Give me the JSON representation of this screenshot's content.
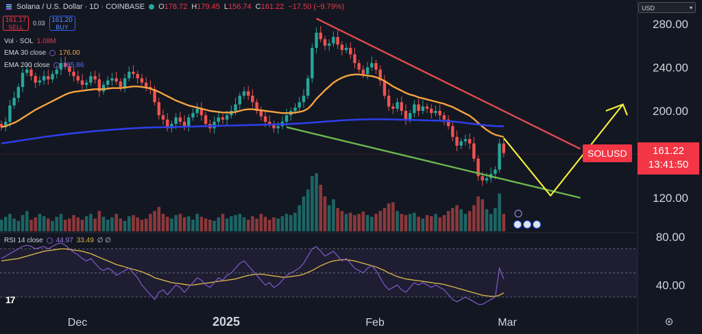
{
  "header": {
    "symbol": "Solana / U.S. Dollar · 1D · COINBASE",
    "open_label": "O",
    "open": "178.72",
    "high_label": "H",
    "high": "179.45",
    "low_label": "L",
    "low": "156.74",
    "close_label": "C",
    "close": "161.22",
    "change": "−17.50 (−9.79%)"
  },
  "trade": {
    "sell_price": "161.17",
    "sell_label": "SELL",
    "spread": "0.03",
    "buy_price": "161.20",
    "buy_label": "BUY"
  },
  "indicators": {
    "vol_label": "Vol · SOL",
    "vol_value": "1.08M",
    "ema30_label": "EMA 30 close",
    "ema30_value": "176.00",
    "ema200_label": "EMA 200 close",
    "ema200_value": "185.86",
    "rsi_label": "RSI 14 close",
    "rsi_value": "44.97",
    "rsi_ma_value": "33.49",
    "rsi_extra": "∅ ∅"
  },
  "currency_select": "USD",
  "price_label": {
    "symbol": "SOLUSD",
    "price": "161.22",
    "countdown": "13:41:50"
  },
  "colors": {
    "background": "#131722",
    "up": "#26a69a",
    "down": "#ef5350",
    "ema30": "#f7a440",
    "ema200": "#2d3ee6",
    "trend_upper": "#e04b50",
    "trend_lower": "#6cb84f",
    "projection": "#f2f03a",
    "rsi_line": "#7e57c2",
    "rsi_ma": "#d5b348"
  },
  "icons": {
    "logo": "tradingview-logo-icon",
    "settings": "settings-gear-icon",
    "flags": "us-flag-icon",
    "lightning": "lightning-icon"
  },
  "chart_data": [
    {
      "type": "candlestick",
      "title": "Solana / U.S. Dollar · 1D · COINBASE",
      "x_ticks": [
        "Dec",
        "2025",
        "Feb",
        "Mar"
      ],
      "y_ticks": [
        "280.00",
        "240.00",
        "200.00",
        "120.00"
      ],
      "ylim": [
        100,
        300
      ],
      "closes": [
        185,
        190,
        205,
        212,
        222,
        235,
        238,
        232,
        226,
        228,
        232,
        229,
        234,
        238,
        244,
        241,
        236,
        232,
        228,
        224,
        226,
        232,
        229,
        218,
        224,
        228,
        230,
        227,
        222,
        230,
        236,
        234,
        230,
        226,
        222,
        220,
        208,
        196,
        192,
        184,
        188,
        194,
        190,
        186,
        194,
        198,
        202,
        196,
        188,
        184,
        190,
        194,
        192,
        196,
        200,
        206,
        214,
        218,
        214,
        208,
        200,
        195,
        190,
        188,
        184,
        186,
        190,
        196,
        200,
        203,
        208,
        214,
        230,
        258,
        272,
        266,
        260,
        262,
        268,
        261,
        256,
        258,
        252,
        244,
        238,
        234,
        240,
        244,
        238,
        228,
        214,
        204,
        202,
        208,
        200,
        192,
        198,
        206,
        200,
        204,
        202,
        198,
        200,
        196,
        192,
        186,
        176,
        168,
        172,
        174,
        170,
        156,
        140,
        136,
        138,
        142,
        146,
        170,
        161.22
      ],
      "ema30": [
        185,
        186,
        187.5,
        189,
        191,
        193.5,
        196,
        198.5,
        201,
        203,
        205,
        207,
        209,
        211,
        213,
        215,
        216.5,
        217.5,
        218,
        218.5,
        219,
        219.5,
        220,
        220,
        220,
        220.5,
        221,
        221,
        221,
        221.5,
        222,
        222.5,
        222.5,
        222,
        221.5,
        220.5,
        219,
        217.5,
        215.5,
        213.5,
        211.5,
        209.5,
        208,
        206.5,
        205,
        204,
        203,
        202,
        201,
        200,
        199.5,
        199,
        198.5,
        198.5,
        198.5,
        199,
        200,
        201,
        201.5,
        201.5,
        201,
        200.5,
        200,
        199.5,
        199,
        198.5,
        198,
        198,
        198,
        198.5,
        199,
        200,
        202,
        206,
        211,
        215,
        219,
        222.5,
        226,
        228.5,
        230.5,
        232,
        233,
        233.5,
        233.5,
        233,
        232.5,
        232,
        231,
        229.5,
        227.5,
        225,
        222.5,
        220.5,
        218.5,
        216.5,
        215,
        214,
        212.5,
        211.5,
        210.5,
        209.5,
        208.5,
        207.5,
        206.5,
        205,
        203.5,
        201.5,
        199.5,
        197.5,
        195.5,
        192.5,
        189,
        185.5,
        182.5,
        180,
        178,
        177,
        176
      ],
      "ema200": [
        170,
        170.6,
        171.2,
        171.8,
        172.4,
        173,
        173.6,
        174.2,
        174.8,
        175.4,
        176,
        176.5,
        177,
        177.5,
        178,
        178.5,
        179,
        179.4,
        179.8,
        180.2,
        180.6,
        181,
        181.4,
        181.7,
        182,
        182.3,
        182.6,
        182.9,
        183.2,
        183.5,
        183.8,
        184,
        184.2,
        184.4,
        184.6,
        184.7,
        184.8,
        184.9,
        185,
        185,
        185.1,
        185.2,
        185.3,
        185.4,
        185.5,
        185.6,
        185.7,
        185.8,
        185.9,
        186,
        186.1,
        186.2,
        186.3,
        186.4,
        186.5,
        186.6,
        186.7,
        186.8,
        186.9,
        187,
        187.1,
        187.2,
        187.3,
        187.4,
        187.5,
        187.6,
        187.7,
        187.8,
        188,
        188.2,
        188.4,
        188.6,
        188.9,
        189.2,
        189.5,
        189.8,
        190.1,
        190.4,
        190.7,
        191,
        191.3,
        191.5,
        191.7,
        191.9,
        192,
        192.1,
        192.2,
        192.3,
        192.3,
        192.3,
        192.3,
        192.2,
        192.1,
        192,
        191.9,
        191.8,
        191.7,
        191.6,
        191.5,
        191.4,
        191.3,
        191.2,
        191.1,
        191,
        190.8,
        190.5,
        190.2,
        189.8,
        189.4,
        189,
        188.5,
        188,
        187.5,
        187,
        186.6,
        186.3,
        186,
        185.9,
        185.86
      ],
      "volume_relative": [
        0.2,
        0.25,
        0.3,
        0.22,
        0.18,
        0.28,
        0.35,
        0.2,
        0.24,
        0.3,
        0.26,
        0.22,
        0.18,
        0.25,
        0.3,
        0.2,
        0.22,
        0.28,
        0.24,
        0.2,
        0.26,
        0.3,
        0.22,
        0.35,
        0.25,
        0.2,
        0.24,
        0.3,
        0.22,
        0.18,
        0.26,
        0.28,
        0.24,
        0.2,
        0.22,
        0.3,
        0.35,
        0.42,
        0.3,
        0.25,
        0.22,
        0.28,
        0.3,
        0.24,
        0.26,
        0.2,
        0.3,
        0.25,
        0.22,
        0.2,
        0.18,
        0.24,
        0.3,
        0.22,
        0.26,
        0.28,
        0.3,
        0.24,
        0.2,
        0.26,
        0.22,
        0.3,
        0.25,
        0.2,
        0.24,
        0.22,
        0.26,
        0.3,
        0.28,
        0.32,
        0.45,
        0.6,
        0.72,
        0.95,
        1.0,
        0.8,
        0.6,
        0.45,
        0.55,
        0.4,
        0.35,
        0.3,
        0.32,
        0.28,
        0.3,
        0.34,
        0.28,
        0.25,
        0.3,
        0.35,
        0.4,
        0.48,
        0.5,
        0.35,
        0.3,
        0.28,
        0.3,
        0.32,
        0.25,
        0.22,
        0.28,
        0.26,
        0.3,
        0.24,
        0.28,
        0.35,
        0.4,
        0.45,
        0.38,
        0.3,
        0.35,
        0.45,
        0.6,
        0.55,
        0.38,
        0.3,
        0.4,
        0.65,
        0.3
      ],
      "trendlines": [
        {
          "name": "upper",
          "from": {
            "index": 74,
            "price": 285
          },
          "to": {
            "index": 136,
            "price": 165
          }
        },
        {
          "name": "lower",
          "from": {
            "index": 67,
            "price": 185
          },
          "to": {
            "index": 136,
            "price": 120
          }
        }
      ],
      "projection": [
        {
          "index": 118,
          "price": 175
        },
        {
          "index": 129,
          "price": 122
        },
        {
          "index": 146,
          "price": 206
        },
        {
          "index": 142,
          "price": 200
        },
        {
          "index": 146,
          "price": 206
        },
        {
          "index": 147,
          "price": 196
        }
      ]
    },
    {
      "type": "line",
      "title": "RSI 14 close",
      "y_ticks": [
        "80.00",
        "40.00"
      ],
      "ylim": [
        20,
        90
      ],
      "bands": [
        70,
        50,
        30
      ],
      "rsi": [
        62,
        64,
        66,
        68,
        70,
        72,
        73,
        72,
        70,
        71,
        72,
        70,
        72,
        74,
        75,
        73,
        70,
        67,
        65,
        62,
        60,
        62,
        58,
        54,
        52,
        54,
        52,
        48,
        50,
        52,
        54,
        50,
        46,
        40,
        36,
        32,
        28,
        34,
        36,
        32,
        36,
        40,
        38,
        34,
        38,
        42,
        46,
        44,
        40,
        38,
        42,
        46,
        44,
        48,
        50,
        54,
        58,
        60,
        56,
        52,
        48,
        44,
        40,
        42,
        38,
        40,
        44,
        48,
        50,
        52,
        54,
        58,
        64,
        70,
        72,
        68,
        64,
        66,
        68,
        64,
        60,
        62,
        58,
        54,
        52,
        50,
        54,
        56,
        52,
        46,
        40,
        36,
        38,
        40,
        36,
        34,
        38,
        42,
        40,
        42,
        40,
        38,
        40,
        38,
        36,
        32,
        28,
        26,
        28,
        30,
        28,
        26,
        24,
        24,
        26,
        28,
        30,
        54,
        45
      ],
      "rsi_ma": [
        60,
        60.5,
        61,
        61.5,
        62,
        63,
        64,
        65,
        66,
        67,
        68,
        68.5,
        69,
        69.5,
        70,
        70,
        69.5,
        69,
        68.5,
        68,
        67,
        66,
        64.5,
        63,
        61.5,
        60,
        58.5,
        57,
        56,
        55,
        54,
        53,
        52,
        51,
        49.5,
        48,
        46,
        45,
        44,
        43,
        42,
        41.5,
        41,
        40.5,
        40,
        40,
        40.5,
        41,
        41.5,
        42,
        42.5,
        43,
        43.5,
        44,
        44.5,
        45,
        46,
        47,
        48,
        48.5,
        49,
        49,
        48.5,
        48,
        47.5,
        47,
        46.5,
        46.5,
        47,
        47.5,
        48,
        49,
        50.5,
        52,
        54,
        56,
        57.5,
        59,
        60,
        60.5,
        61,
        61,
        60.5,
        60,
        59,
        58,
        57,
        56,
        55,
        53.5,
        52,
        50,
        48.5,
        47,
        46,
        45,
        44.5,
        44,
        43.5,
        43,
        42.5,
        42,
        41.5,
        41,
        40.5,
        39.5,
        38.5,
        37.5,
        36.5,
        35.5,
        34.5,
        33.5,
        32.5,
        31.5,
        31,
        30.5,
        30.5,
        31.5,
        33.49
      ]
    }
  ]
}
